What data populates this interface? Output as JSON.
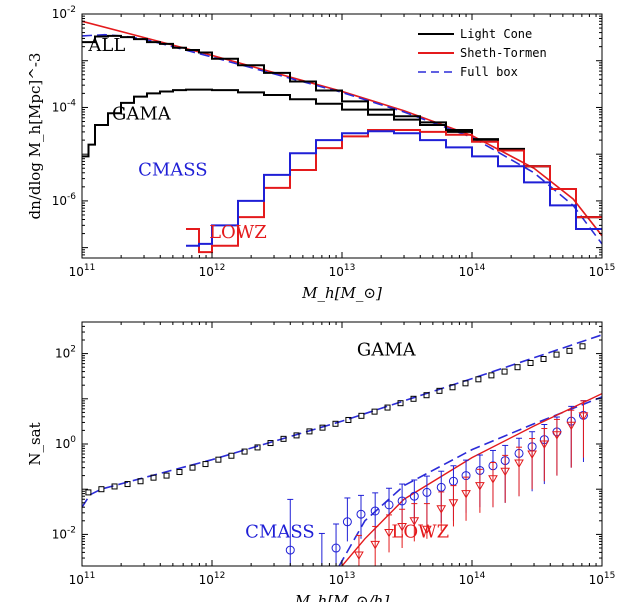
{
  "colors": {
    "black": "#000000",
    "red": "#e41a1c",
    "blue": "#1f1fd6",
    "blue_dash": "#2b2bd8"
  },
  "x_tick_labels": [
    "10^11",
    "10^12",
    "10^13",
    "10^14",
    "10^15"
  ],
  "chart_data": [
    {
      "type": "line",
      "xlabel": "M_h[M_⊙]",
      "ylabel": "dn/dlog M_h[Mpc]^-3",
      "xscale": "log",
      "yscale": "log",
      "xlim": [
        100000000000.0,
        1000000000000000.0
      ],
      "ylim": [
        6e-08,
        0.01
      ],
      "y_ticks": [
        {
          "value": 1e-06,
          "label": "10^-6"
        },
        {
          "value": 0.0001,
          "label": "10^-4"
        },
        {
          "value": 0.01,
          "label": "10^-2"
        }
      ],
      "legend": {
        "position": "top-right",
        "entries": [
          {
            "label": "Light Cone",
            "color": "#000000",
            "style": "solid"
          },
          {
            "label": "Sheth-Tormen",
            "color": "#e41a1c",
            "style": "solid"
          },
          {
            "label": "Full box",
            "color": "#2b2bd8",
            "style": "dashed"
          }
        ]
      },
      "annotations": [
        {
          "text": "ALL",
          "x": 112000000000.0,
          "y": 0.0016,
          "color": "#000000"
        },
        {
          "text": "GAMA",
          "x": 170000000000.0,
          "y": 5.5e-05,
          "color": "#000000"
        },
        {
          "text": "CMASS",
          "x": 270000000000.0,
          "y": 3.5e-06,
          "color": "#1f1fd6"
        },
        {
          "text": "LOWZ",
          "x": 950000000000.0,
          "y": 1.6e-07,
          "color": "#e41a1c"
        }
      ],
      "series": [
        {
          "name": "Sheth-Tormen",
          "kind": "line",
          "color": "#e41a1c",
          "width": 1.6,
          "x": [
            100000000000.0,
            1000000000000.0,
            10000000000000.0,
            30000000000000.0,
            100000000000000.0,
            300000000000000.0,
            600000000000000.0,
            1000000000000000.0
          ],
          "y": [
            0.007,
            0.0013,
            0.00022,
            8.5e-05,
            2.5e-05,
            5e-06,
            1.1e-06,
            1.8e-07
          ]
        },
        {
          "name": "Full box",
          "kind": "line",
          "color": "#2b2bd8",
          "width": 1.6,
          "dash": "10,5",
          "x": [
            100000000000.0,
            150000000000.0,
            200000000000.0,
            300000000000.0,
            1000000000000.0,
            10000000000000.0,
            30000000000000.0,
            100000000000000.0,
            300000000000000.0,
            600000000000000.0,
            1000000000000000.0
          ],
          "y": [
            0.0034,
            0.0036,
            0.0034,
            0.0029,
            0.0012,
            0.00021,
            8e-05,
            2.3e-05,
            4e-06,
            8e-07,
            1.2e-07
          ]
        },
        {
          "name": "ALL",
          "kind": "step",
          "color": "#000000",
          "width": 2,
          "edges": [
            11.0,
            11.1,
            11.2,
            11.3,
            11.4,
            11.5,
            11.6,
            11.7,
            11.8,
            11.9,
            12.0,
            12.2,
            12.4,
            12.6,
            12.8,
            13.0,
            13.2,
            13.4,
            13.6,
            13.8,
            14.0,
            14.2,
            14.4,
            14.6,
            14.8,
            15.0
          ],
          "values": [
            0.0025,
            0.0033,
            0.0034,
            0.0032,
            0.0029,
            0.0025,
            0.0023,
            0.0019,
            0.0017,
            0.0015,
            0.0011,
            0.0008,
            0.00055,
            0.00036,
            0.00023,
            0.000135,
            9e-05,
            6.5e-05,
            4.8e-05,
            3.3e-05,
            2.1e-05,
            1.3e-05,
            5.5e-06,
            1.8e-06,
            4.5e-07
          ]
        },
        {
          "name": "GAMA",
          "kind": "step",
          "color": "#000000",
          "width": 2,
          "edges": [
            11.0,
            11.05,
            11.1,
            11.2,
            11.3,
            11.4,
            11.5,
            11.6,
            11.7,
            11.8,
            12.0,
            12.2,
            12.4,
            12.6,
            12.8,
            13.0,
            13.2,
            13.4,
            13.6,
            13.8,
            14.0,
            14.2,
            14.4,
            14.6,
            14.8,
            15.0
          ],
          "values": [
            9e-06,
            1.6e-05,
            4.2e-05,
            7.5e-05,
            0.000125,
            0.00017,
            0.0002,
            0.00022,
            0.000235,
            0.00024,
            0.000235,
            0.00021,
            0.000185,
            0.00015,
            0.00012,
            9e-05,
            7e-05,
            5.5e-05,
            4.2e-05,
            3e-05,
            1.9e-05,
            1.2e-05,
            5.5e-06,
            1.8e-06,
            4.5e-07
          ]
        },
        {
          "name": "LOWZ",
          "kind": "step",
          "color": "#e41a1c",
          "width": 2,
          "edges": [
            11.8,
            11.9,
            12.0,
            12.2,
            12.4,
            12.6,
            12.8,
            13.0,
            13.2,
            13.4,
            13.6,
            13.8,
            14.0,
            14.2,
            14.4,
            14.6,
            14.8,
            15.0
          ],
          "values": [
            2.5e-07,
            8e-08,
            1.1e-07,
            4.5e-07,
            1.9e-06,
            4.6e-06,
            1.35e-05,
            2.4e-05,
            3.3e-05,
            3.3e-05,
            3e-05,
            2.6e-05,
            1.85e-05,
            1.2e-05,
            5.5e-06,
            1.8e-06,
            4.5e-07
          ]
        },
        {
          "name": "CMASS",
          "kind": "step",
          "color": "#1f1fd6",
          "width": 2,
          "edges": [
            11.8,
            11.9,
            12.0,
            12.2,
            12.4,
            12.6,
            12.8,
            13.0,
            13.2,
            13.4,
            13.6,
            13.8,
            14.0,
            14.2,
            14.4,
            14.6,
            14.8,
            15.0
          ],
          "values": [
            1.1e-07,
            1.2e-07,
            3e-07,
            1e-06,
            3.6e-06,
            1.05e-05,
            2e-05,
            2.8e-05,
            3.1e-05,
            2.8e-05,
            2e-05,
            1.4e-05,
            9e-06,
            5.5e-06,
            2.5e-06,
            8e-07,
            2.5e-07
          ]
        }
      ]
    },
    {
      "type": "scatter",
      "xlabel": "M_h[M_⊙/h]",
      "ylabel": "N_sat",
      "xscale": "log",
      "yscale": "log",
      "xlim": [
        100000000000.0,
        1000000000000000.0
      ],
      "ylim": [
        0.002,
        500
      ],
      "y_ticks": [
        {
          "value": 0.01,
          "label": "10^-2"
        },
        {
          "value": 1,
          "label": "10^0"
        },
        {
          "value": 100,
          "label": "10^2"
        }
      ],
      "annotations": [
        {
          "text": "GAMA",
          "x": 13000000000000.0,
          "y": 90,
          "color": "#000000"
        },
        {
          "text": "CMASS",
          "x": 1800000000000.0,
          "y": 0.0085,
          "color": "#1f1fd6"
        },
        {
          "text": "LOWZ",
          "x": 24000000000000.0,
          "y": 0.0085,
          "color": "#e41a1c"
        }
      ],
      "series": [
        {
          "name": "GAMA fit",
          "kind": "line",
          "color": "#2b2bd8",
          "width": 1.6,
          "dash": "10,5",
          "x": [
            100000000000.0,
            115000000000.0,
            140000000000.0,
            300000000000.0,
            1000000000000.0,
            10000000000000.0,
            100000000000000.0,
            1000000000000000.0
          ],
          "y": [
            0.04,
            0.075,
            0.1,
            0.18,
            0.45,
            3.2,
            28,
            260
          ]
        },
        {
          "name": "GAMA",
          "kind": "points",
          "marker": "square",
          "color": "#000000",
          "x": [
            112000000000.0,
            141000000000.0,
            178000000000.0,
            224000000000.0,
            282000000000.0,
            355000000000.0,
            447000000000.0,
            562000000000.0,
            708000000000.0,
            891000000000.0,
            1120000000000.0,
            1410000000000.0,
            1780000000000.0,
            2240000000000.0,
            2820000000000.0,
            3550000000000.0,
            4470000000000.0,
            5620000000000.0,
            7080000000000.0,
            8910000000000.0,
            11200000000000.0,
            14100000000000.0,
            17800000000000.0,
            22400000000000.0,
            28200000000000.0,
            35500000000000.0,
            44700000000000.0,
            56200000000000.0,
            70800000000000.0,
            89100000000000.0,
            112000000000000.0,
            141000000000000.0,
            178000000000000.0,
            224000000000000.0,
            282000000000000.0,
            355000000000000.0,
            447000000000000.0,
            562000000000000.0,
            708000000000000.0
          ],
          "y": [
            0.085,
            0.1,
            0.115,
            0.13,
            0.15,
            0.18,
            0.2,
            0.24,
            0.3,
            0.36,
            0.45,
            0.55,
            0.68,
            0.84,
            1.05,
            1.3,
            1.55,
            1.9,
            2.3,
            2.8,
            3.4,
            4.2,
            5.2,
            6.4,
            8.0,
            10,
            12,
            15,
            18,
            22,
            27,
            33,
            40,
            50,
            62,
            76,
            95,
            115,
            145
          ]
        },
        {
          "name": "CMASS fit",
          "kind": "line",
          "color": "#2b2bd8",
          "width": 1.6,
          "dash": "10,5",
          "x": [
            9500000000000.0,
            15000000000000.0,
            30000000000000.0,
            100000000000000.0,
            300000000000000.0,
            1000000000000000.0
          ],
          "y": [
            0.002,
            0.02,
            0.12,
            0.75,
            2.8,
            11
          ]
        },
        {
          "name": "LOWZ fit",
          "kind": "line",
          "color": "#e41a1c",
          "width": 1.4,
          "x": [
            10000000000000.0,
            15000000000000.0,
            30000000000000.0,
            100000000000000.0,
            300000000000000.0,
            1000000000000000.0
          ],
          "y": [
            0.002,
            0.008,
            0.06,
            0.5,
            2.5,
            13
          ]
        },
        {
          "name": "CMASS",
          "kind": "points",
          "marker": "circle",
          "color": "#1f1fd6",
          "x": [
            4000000000000.0,
            7000000000000.0,
            9000000000000.0,
            11000000000000.0,
            14000000000000.0,
            18000000000000.0,
            23000000000000.0,
            29000000000000.0,
            36000000000000.0,
            45000000000000.0,
            58000000000000.0,
            72000000000000.0,
            90000000000000.0,
            115000000000000.0,
            145000000000000.0,
            180000000000000.0,
            230000000000000.0,
            290000000000000.0,
            360000000000000.0,
            450000000000000.0,
            580000000000000.0,
            720000000000000.0
          ],
          "y": [
            0.0045,
            0.0015,
            0.005,
            0.019,
            0.028,
            0.033,
            0.045,
            0.055,
            0.07,
            0.085,
            0.11,
            0.15,
            0.2,
            0.26,
            0.33,
            0.43,
            0.62,
            0.87,
            1.25,
            1.85,
            3.2,
            4.3
          ],
          "err_up": [
            0.055,
            0.009,
            0.012,
            0.045,
            0.045,
            0.05,
            0.06,
            0.075,
            0.09,
            0.11,
            0.14,
            0.18,
            0.24,
            0.31,
            0.39,
            0.5,
            0.72,
            1.0,
            1.45,
            2.1,
            3.6,
            4.8
          ],
          "err_down": [
            0.0045,
            0.0015,
            0.005,
            0.012,
            0.02,
            0.025,
            0.034,
            0.043,
            0.055,
            0.07,
            0.092,
            0.13,
            0.17,
            0.22,
            0.29,
            0.38,
            0.55,
            0.78,
            1.12,
            1.65,
            2.9,
            3.9
          ]
        },
        {
          "name": "LOWZ",
          "kind": "points",
          "marker": "triangle-down",
          "color": "#e41a1c",
          "x": [
            13500000000000.0,
            18000000000000.0,
            23000000000000.0,
            29000000000000.0,
            36000000000000.0,
            45000000000000.0,
            58000000000000.0,
            72000000000000.0,
            90000000000000.0,
            115000000000000.0,
            145000000000000.0,
            180000000000000.0,
            230000000000000.0,
            290000000000000.0,
            360000000000000.0,
            450000000000000.0,
            580000000000000.0,
            720000000000000.0
          ],
          "y": [
            0.0035,
            0.006,
            0.011,
            0.015,
            0.02,
            0.013,
            0.037,
            0.05,
            0.08,
            0.12,
            0.17,
            0.25,
            0.38,
            0.6,
            1.0,
            1.6,
            2.6,
            4.2
          ],
          "err_up": [
            0.006,
            0.009,
            0.016,
            0.021,
            0.028,
            0.035,
            0.05,
            0.07,
            0.105,
            0.155,
            0.22,
            0.31,
            0.47,
            0.72,
            1.2,
            1.9,
            3.0,
            4.8
          ],
          "err_down": [
            0.0025,
            0.004,
            0.007,
            0.01,
            0.013,
            0.005,
            0.025,
            0.035,
            0.06,
            0.09,
            0.13,
            0.2,
            0.31,
            0.5,
            0.85,
            1.4,
            2.3,
            3.7
          ]
        }
      ]
    }
  ]
}
